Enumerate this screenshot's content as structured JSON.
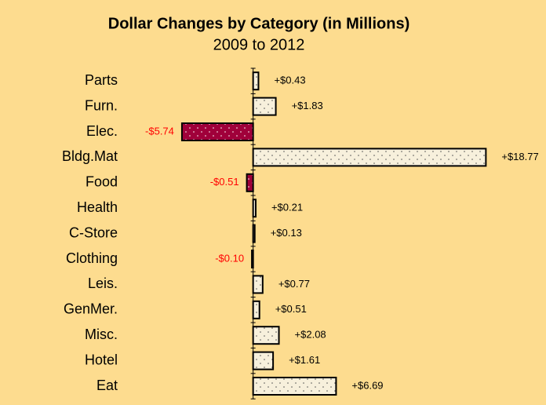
{
  "chart_data": {
    "type": "hbar",
    "title": "Dollar Changes by Category (in Millions)",
    "subtitle": "2009 to 2012",
    "categories": [
      "Parts",
      "Furn.",
      "Elec.",
      "Bldg.Mat",
      "Food",
      "Health",
      "C-Store",
      "Clothing",
      "Leis.",
      "GenMer.",
      "Misc.",
      "Hotel",
      "Eat"
    ],
    "values": [
      0.43,
      1.83,
      -5.74,
      18.77,
      -0.51,
      0.21,
      0.13,
      -0.1,
      0.77,
      0.51,
      2.08,
      1.61,
      6.69
    ],
    "value_labels": [
      "+$0.43",
      "+$1.83",
      "-$5.74",
      "+$18.77",
      "-$0.51",
      "+$0.21",
      "+$0.13",
      "-$0.10",
      "+$0.77",
      "+$0.51",
      "+$2.08",
      "+$1.61",
      "+$6.69"
    ],
    "xlim": [
      -7,
      19
    ],
    "color": "#f7f0dc",
    "negative_color": "#a0003a",
    "label_color": "#000000",
    "negative_label_color": "#ff0000"
  }
}
